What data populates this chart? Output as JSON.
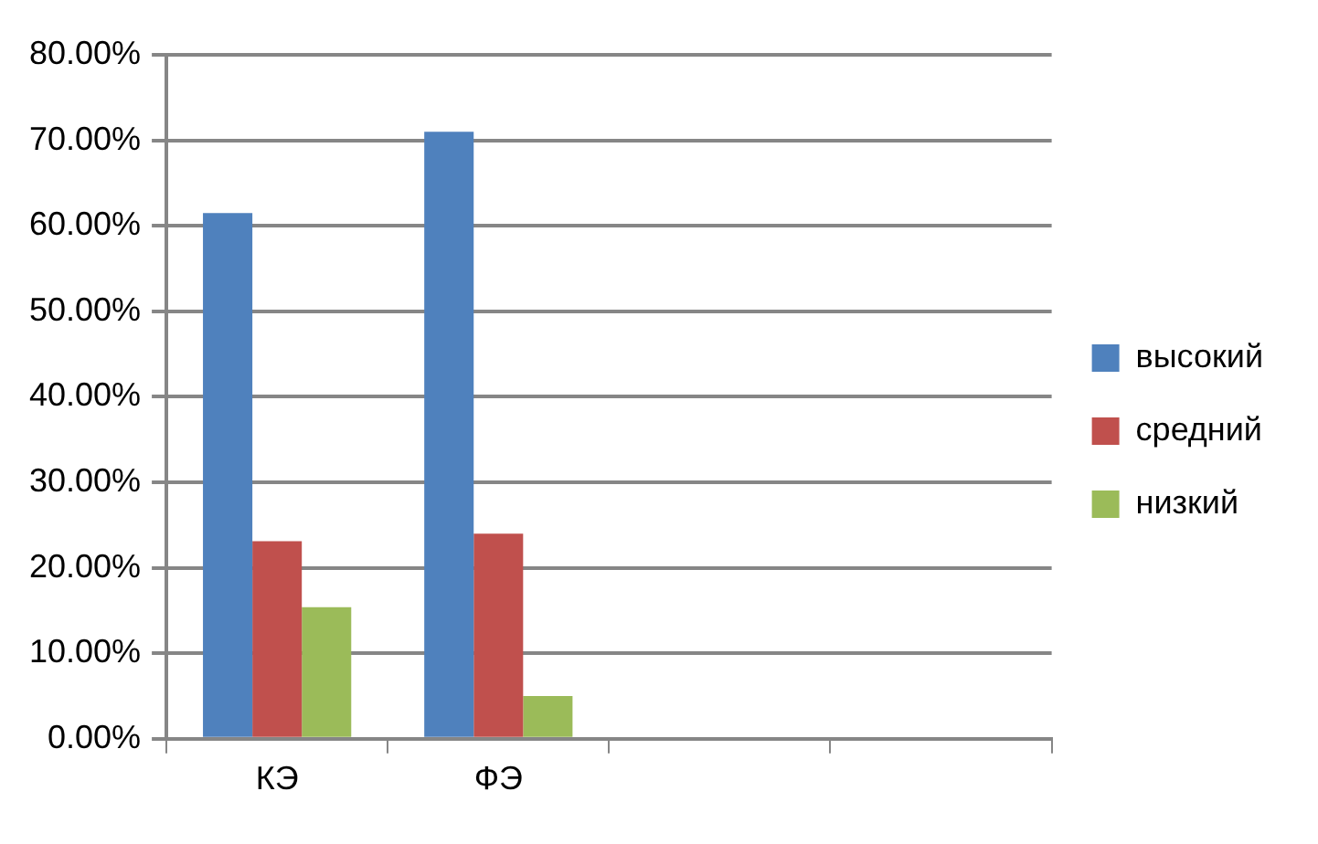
{
  "chart_data": {
    "type": "bar",
    "categories": [
      "КЭ",
      "ФЭ",
      null,
      null
    ],
    "series": [
      {
        "name": "высокий",
        "color": "#4f81bd",
        "values": [
          61.5,
          71,
          null,
          null
        ]
      },
      {
        "name": "средний",
        "color": "#c0504d",
        "values": [
          23.1,
          24,
          null,
          null
        ]
      },
      {
        "name": "низкий",
        "color": "#9bbb59",
        "values": [
          15.4,
          5,
          null,
          null
        ]
      }
    ],
    "ylim": [
      0,
      80
    ],
    "yticks": [
      {
        "value": 0,
        "label": "0.00%"
      },
      {
        "value": 10,
        "label": "10.00%"
      },
      {
        "value": 20,
        "label": "20.00%"
      },
      {
        "value": 30,
        "label": "30.00%"
      },
      {
        "value": 40,
        "label": "40.00%"
      },
      {
        "value": 50,
        "label": "50.00%"
      },
      {
        "value": 60,
        "label": "60.00%"
      },
      {
        "value": 70,
        "label": "70.00%"
      },
      {
        "value": 80,
        "label": "80.00%"
      }
    ],
    "grid": "y",
    "legend": "right"
  }
}
